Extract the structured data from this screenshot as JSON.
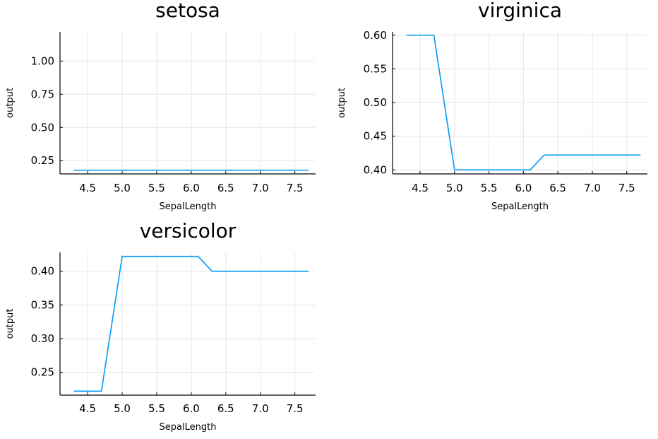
{
  "series_color": "#009af9",
  "chart_data": [
    {
      "type": "line",
      "title": "setosa",
      "xlabel": "SepalLength",
      "ylabel": "output",
      "xlim": [
        4.1,
        7.8
      ],
      "ylim": [
        0.15,
        1.22
      ],
      "xticks": [
        4.5,
        5.0,
        5.5,
        6.0,
        6.5,
        7.0,
        7.5
      ],
      "xtick_labels": [
        "4.5",
        "5.0",
        "5.5",
        "6.0",
        "6.5",
        "7.0",
        "7.5"
      ],
      "yticks": [
        0.25,
        0.5,
        0.75,
        1.0
      ],
      "ytick_labels": [
        "0.25",
        "0.50",
        "0.75",
        "1.00"
      ],
      "x": [
        4.3,
        7.7
      ],
      "y": [
        0.178,
        0.178
      ]
    },
    {
      "type": "line",
      "title": "virginica",
      "xlabel": "SepalLength",
      "ylabel": "output",
      "xlim": [
        4.1,
        7.8
      ],
      "ylim": [
        0.394,
        0.605
      ],
      "xticks": [
        4.5,
        5.0,
        5.5,
        6.0,
        6.5,
        7.0,
        7.5
      ],
      "xtick_labels": [
        "4.5",
        "5.0",
        "5.5",
        "6.0",
        "6.5",
        "7.0",
        "7.5"
      ],
      "yticks": [
        0.4,
        0.45,
        0.5,
        0.55,
        0.6
      ],
      "ytick_labels": [
        "0.40",
        "0.45",
        "0.50",
        "0.55",
        "0.60"
      ],
      "x": [
        4.3,
        4.7,
        5.0,
        6.1,
        6.3,
        7.7
      ],
      "y": [
        0.6,
        0.6,
        0.4,
        0.4,
        0.422,
        0.422
      ]
    },
    {
      "type": "line",
      "title": "versicolor",
      "xlabel": "SepalLength",
      "ylabel": "output",
      "xlim": [
        4.1,
        7.8
      ],
      "ylim": [
        0.216,
        0.428
      ],
      "xticks": [
        4.5,
        5.0,
        5.5,
        6.0,
        6.5,
        7.0,
        7.5
      ],
      "xtick_labels": [
        "4.5",
        "5.0",
        "5.5",
        "6.0",
        "6.5",
        "7.0",
        "7.5"
      ],
      "yticks": [
        0.25,
        0.3,
        0.35,
        0.4
      ],
      "ytick_labels": [
        "0.25",
        "0.30",
        "0.35",
        "0.40"
      ],
      "x": [
        4.3,
        4.7,
        5.0,
        6.1,
        6.3,
        7.7
      ],
      "y": [
        0.222,
        0.222,
        0.422,
        0.422,
        0.4,
        0.4
      ]
    }
  ]
}
